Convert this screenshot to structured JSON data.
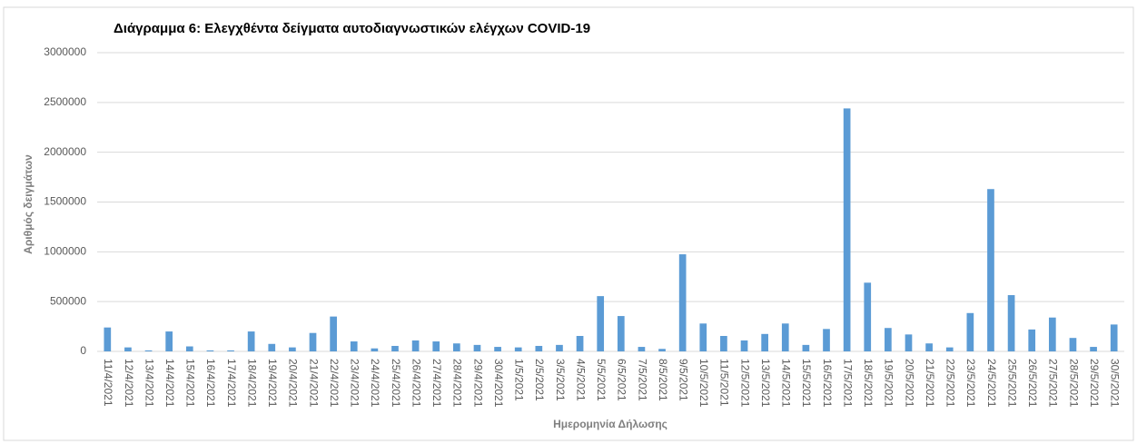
{
  "chart_data": {
    "type": "bar",
    "title": "Διάγραμμα 6: Ελεγχθέντα δείγματα αυτοδιαγνωστικών ελέγχων COVID-19",
    "x_label": "Ημερομηνία Δήλωσης",
    "y_label": "Αριθμός δειγμάτων",
    "categories": [
      "11/4/2021",
      "12/4/2021",
      "13/4/2021",
      "14/4/2021",
      "15/4/2021",
      "16/4/2021",
      "17/4/2021",
      "18/4/2021",
      "19/4/2021",
      "20/4/2021",
      "21/4/2021",
      "22/4/2021",
      "23/4/2021",
      "24/4/2021",
      "25/4/2021",
      "26/4/2021",
      "27/4/2021",
      "28/4/2021",
      "29/4/2021",
      "30/4/2021",
      "1/5/2021",
      "2/5/2021",
      "3/5/2021",
      "4/5/2021",
      "5/5/2021",
      "6/5/2021",
      "7/5/2021",
      "8/5/2021",
      "9/5/2021",
      "10/5/2021",
      "11/5/2021",
      "12/5/2021",
      "13/5/2021",
      "14/5/2021",
      "15/5/2021",
      "16/5/2021",
      "17/5/2021",
      "18/5/2021",
      "19/5/2021",
      "20/5/2021",
      "21/5/2021",
      "22/5/2021",
      "23/5/2021",
      "24/5/2021",
      "25/5/2021",
      "26/5/2021",
      "27/5/2021",
      "28/5/2021",
      "29/5/2021",
      "30/5/2021"
    ],
    "values": [
      240000,
      40000,
      10000,
      200000,
      50000,
      10000,
      10000,
      200000,
      75000,
      40000,
      185000,
      350000,
      100000,
      30000,
      55000,
      110000,
      100000,
      80000,
      65000,
      45000,
      40000,
      55000,
      65000,
      155000,
      555000,
      355000,
      45000,
      25000,
      975000,
      280000,
      155000,
      110000,
      175000,
      280000,
      65000,
      225000,
      2440000,
      690000,
      235000,
      170000,
      80000,
      40000,
      385000,
      1630000,
      565000,
      220000,
      340000,
      135000,
      45000,
      270000
    ],
    "color": "#5b9bd5",
    "ylim": [
      0,
      3000000
    ],
    "yticks": [
      0,
      500000,
      1000000,
      1500000,
      2000000,
      2500000,
      3000000
    ],
    "grid": true
  }
}
